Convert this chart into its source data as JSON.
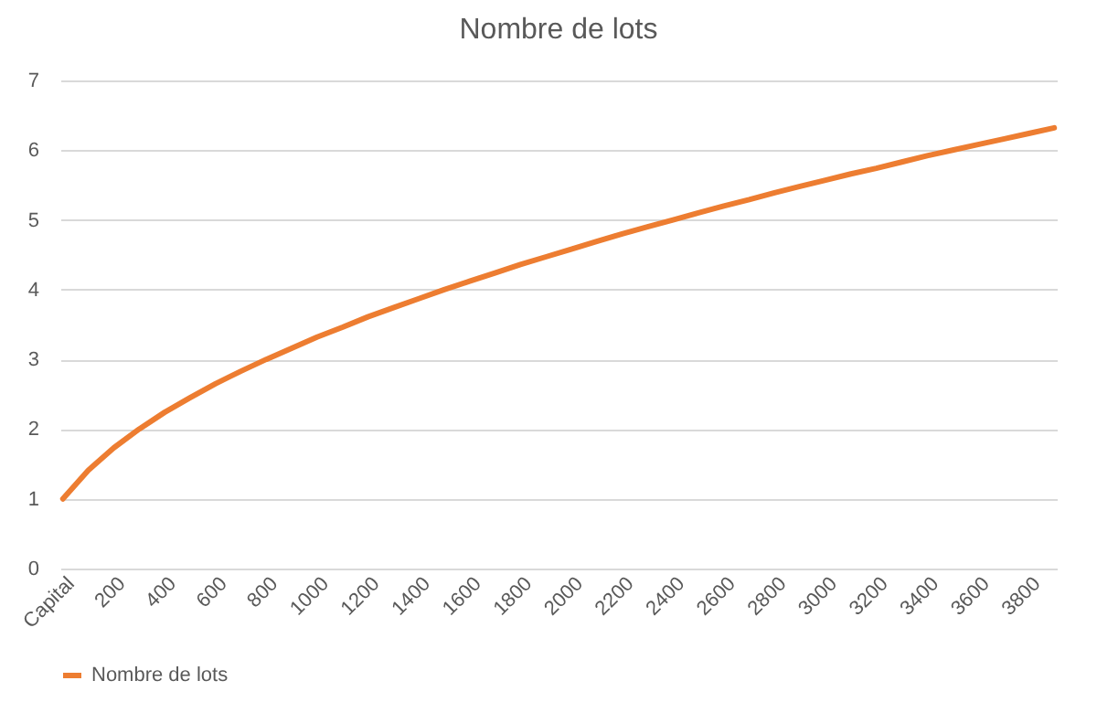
{
  "chart_data": {
    "type": "line",
    "title": "Nombre de lots",
    "categories": [
      "Capital",
      null,
      "200",
      null,
      "400",
      null,
      "600",
      null,
      "800",
      null,
      "1000",
      null,
      "1200",
      null,
      "1400",
      null,
      "1600",
      null,
      "1800",
      null,
      "2000",
      null,
      "2200",
      null,
      "2400",
      null,
      "2600",
      null,
      "2800",
      null,
      "3000",
      null,
      "3200",
      null,
      "3400",
      null,
      "3600",
      null,
      "3800",
      null
    ],
    "series": [
      {
        "name": "Nombre de lots",
        "color": "#ed7d31",
        "values": [
          1,
          1.41,
          1.73,
          2,
          2.24,
          2.45,
          2.65,
          2.83,
          3,
          3.16,
          3.32,
          3.46,
          3.61,
          3.74,
          3.87,
          4,
          4.12,
          4.24,
          4.36,
          4.47,
          4.58,
          4.69,
          4.8,
          4.9,
          5,
          5.1,
          5.2,
          5.29,
          5.39,
          5.48,
          5.57,
          5.66,
          5.74,
          5.83,
          5.92,
          6,
          6.08,
          6.16,
          6.24,
          6.32
        ]
      }
    ],
    "ylim": [
      0,
      7
    ],
    "yticks": [
      0,
      1,
      2,
      3,
      4,
      5,
      6,
      7
    ],
    "grid": "y",
    "legend": "bottom"
  }
}
